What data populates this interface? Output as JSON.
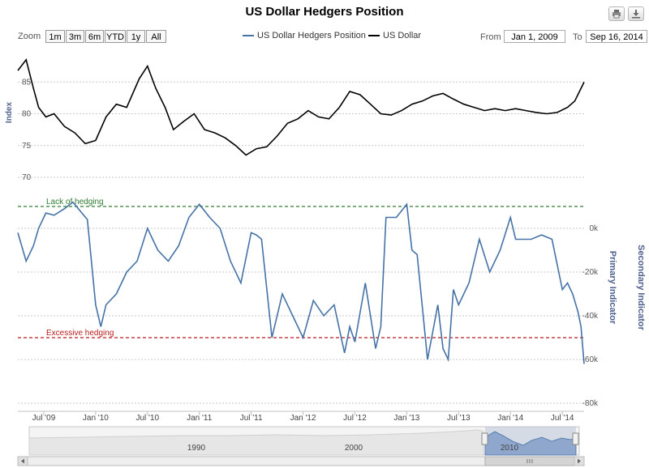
{
  "title": "US Dollar Hedgers Position",
  "toolbar": {
    "print_icon": "print-icon",
    "export_icon": "download-icon"
  },
  "range_selector": {
    "zoom_label": "Zoom",
    "buttons": [
      "1m",
      "3m",
      "6m",
      "YTD",
      "1y",
      "All"
    ],
    "from_label": "From",
    "from_value": "Jan 1, 2009",
    "to_label": "To",
    "to_value": "Sep 16, 2014"
  },
  "legend": [
    {
      "name": "US Dollar Hedgers Position",
      "color": "#4572a7"
    },
    {
      "name": "US Dollar",
      "color": "#000000"
    }
  ],
  "navigator": {
    "labels": [
      "1990",
      "2000",
      "2010"
    ]
  },
  "chart_data": {
    "type": "line",
    "x_range": [
      "2009-04",
      "2014-09"
    ],
    "x_tick_labels": [
      "Jul '09",
      "Jan '10",
      "Jul '10",
      "Jan '11",
      "Jul '11",
      "Jan '12",
      "Jul '12",
      "Jan '13",
      "Jul '13",
      "Jan '14",
      "Jul '14"
    ],
    "top_panel": {
      "ylabel": "Index",
      "ylim": [
        70,
        90
      ],
      "y_ticks": [
        70,
        75,
        80,
        85
      ],
      "series": {
        "name": "US Dollar",
        "color": "#000000",
        "x": [
          2009.25,
          2009.33,
          2009.4,
          2009.45,
          2009.52,
          2009.6,
          2009.7,
          2009.8,
          2009.9,
          2010.0,
          2010.1,
          2010.2,
          2010.3,
          2010.42,
          2010.5,
          2010.58,
          2010.67,
          2010.75,
          2010.85,
          2010.95,
          2011.05,
          2011.15,
          2011.25,
          2011.35,
          2011.45,
          2011.55,
          2011.65,
          2011.75,
          2011.85,
          2011.95,
          2012.05,
          2012.15,
          2012.25,
          2012.35,
          2012.45,
          2012.55,
          2012.65,
          2012.75,
          2012.85,
          2012.95,
          2013.05,
          2013.15,
          2013.25,
          2013.35,
          2013.45,
          2013.55,
          2013.65,
          2013.75,
          2013.85,
          2013.95,
          2014.05,
          2014.15,
          2014.25,
          2014.35,
          2014.45,
          2014.55,
          2014.62,
          2014.68,
          2014.71
        ],
        "y": [
          86.8,
          88.5,
          84,
          81,
          79.5,
          80,
          78,
          77,
          75.3,
          75.8,
          79.5,
          81.5,
          81,
          85.5,
          87.5,
          84,
          81,
          77.5,
          78.8,
          80,
          77.5,
          77,
          76.2,
          75,
          73.5,
          74.5,
          74.8,
          76.5,
          78.5,
          79.2,
          80.5,
          79.5,
          79.2,
          81,
          83.5,
          83,
          81.5,
          80,
          79.8,
          80.5,
          81.5,
          82,
          82.8,
          83.2,
          82.3,
          81.5,
          81,
          80.5,
          80.8,
          80.5,
          80.8,
          80.5,
          80.2,
          80,
          80.2,
          81,
          82,
          84,
          85
        ]
      }
    },
    "bottom_panel": {
      "ylabel": "Primary Indicator",
      "secondary_ylabel": "Secondary Indicator",
      "ylim": [
        -80000,
        20000
      ],
      "y_ticks": [
        0,
        -20000,
        -40000,
        -60000,
        -80000
      ],
      "y_tick_labels": [
        "0k",
        "-20k",
        "-40k",
        "-60k",
        "-80k"
      ],
      "annotations": [
        {
          "label": "Lack of hedging",
          "value": 10000,
          "color": "#2e7d32"
        },
        {
          "label": "Excessive hedging",
          "value": -50000,
          "color": "#b71c1c"
        }
      ],
      "series": {
        "name": "US Dollar Hedgers Position",
        "color": "#4572a7",
        "x": [
          2009.25,
          2009.33,
          2009.4,
          2009.45,
          2009.52,
          2009.6,
          2009.7,
          2009.78,
          2009.85,
          2009.92,
          2010.0,
          2010.05,
          2010.1,
          2010.2,
          2010.3,
          2010.4,
          2010.5,
          2010.6,
          2010.7,
          2010.8,
          2010.9,
          2011.0,
          2011.1,
          2011.2,
          2011.3,
          2011.4,
          2011.5,
          2011.55,
          2011.6,
          2011.7,
          2011.8,
          2011.9,
          2012.0,
          2012.1,
          2012.2,
          2012.3,
          2012.4,
          2012.45,
          2012.5,
          2012.6,
          2012.7,
          2012.75,
          2012.8,
          2012.9,
          2013.0,
          2013.05,
          2013.1,
          2013.2,
          2013.3,
          2013.35,
          2013.4,
          2013.45,
          2013.5,
          2013.6,
          2013.7,
          2013.8,
          2013.9,
          2014.0,
          2014.05,
          2014.1,
          2014.2,
          2014.3,
          2014.4,
          2014.5,
          2014.55,
          2014.6,
          2014.65,
          2014.68,
          2014.71
        ],
        "y": [
          -2000,
          -15000,
          -8000,
          0,
          7000,
          6000,
          9000,
          12000,
          8000,
          4000,
          -35000,
          -45000,
          -35000,
          -30000,
          -20000,
          -15000,
          0,
          -10000,
          -15000,
          -8000,
          5000,
          11000,
          5000,
          0,
          -15000,
          -25000,
          -2000,
          -3000,
          -5000,
          -50000,
          -30000,
          -40000,
          -50000,
          -33000,
          -40000,
          -35000,
          -57000,
          -45000,
          -52000,
          -25000,
          -55000,
          -45000,
          5000,
          5000,
          11000,
          -10000,
          -12000,
          -60000,
          -35000,
          -55000,
          -60000,
          -28000,
          -35000,
          -25000,
          -5000,
          -20000,
          -10000,
          5000,
          -5000,
          -5000,
          -5000,
          -3000,
          -5000,
          -28000,
          -25000,
          -30000,
          -38000,
          -45000,
          -62000
        ]
      }
    }
  }
}
